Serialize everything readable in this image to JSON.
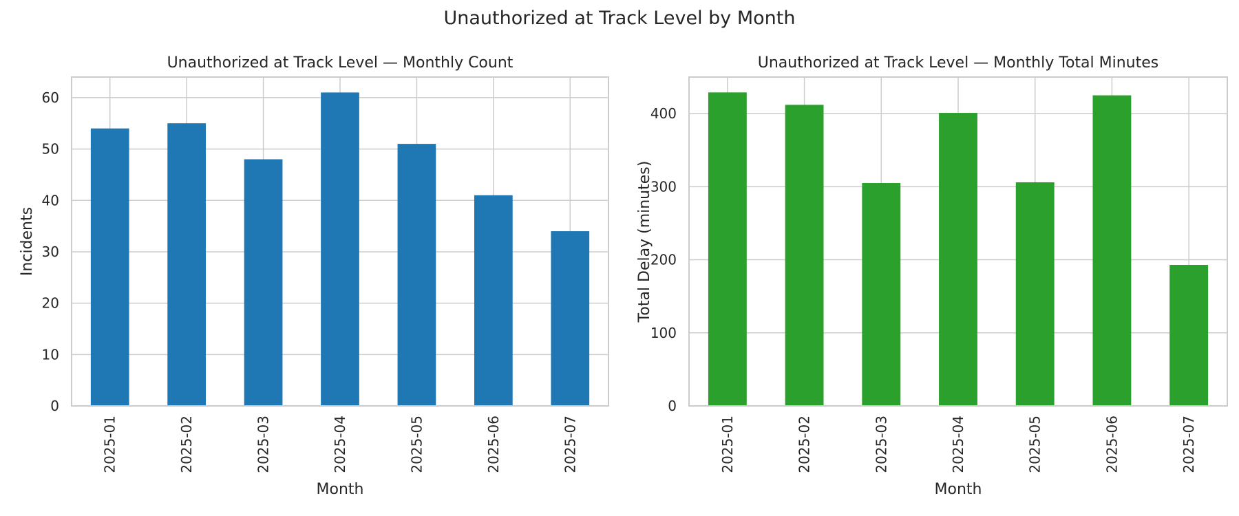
{
  "figure": {
    "suptitle": "Unauthorized at Track Level by Month"
  },
  "chart_data": [
    {
      "type": "bar",
      "title": "Unauthorized at Track Level — Monthly Count",
      "xlabel": "Month",
      "ylabel": "Incidents",
      "categories": [
        "2025-01",
        "2025-02",
        "2025-03",
        "2025-04",
        "2025-05",
        "2025-06",
        "2025-07"
      ],
      "values": [
        54,
        55,
        48,
        61,
        51,
        41,
        34
      ],
      "ylim": [
        0,
        64
      ],
      "yticks": [
        0,
        10,
        20,
        30,
        40,
        50,
        60
      ],
      "color": "#1f77b4",
      "grid": true,
      "legend": "none"
    },
    {
      "type": "bar",
      "title": "Unauthorized at Track Level — Monthly Total Minutes",
      "xlabel": "Month",
      "ylabel": "Total Delay (minutes)",
      "categories": [
        "2025-01",
        "2025-02",
        "2025-03",
        "2025-04",
        "2025-05",
        "2025-06",
        "2025-07"
      ],
      "values": [
        429,
        412,
        305,
        401,
        306,
        425,
        193
      ],
      "ylim": [
        0,
        450
      ],
      "yticks": [
        0,
        100,
        200,
        300,
        400
      ],
      "color": "#2ca02c",
      "grid": true,
      "legend": "none"
    }
  ]
}
